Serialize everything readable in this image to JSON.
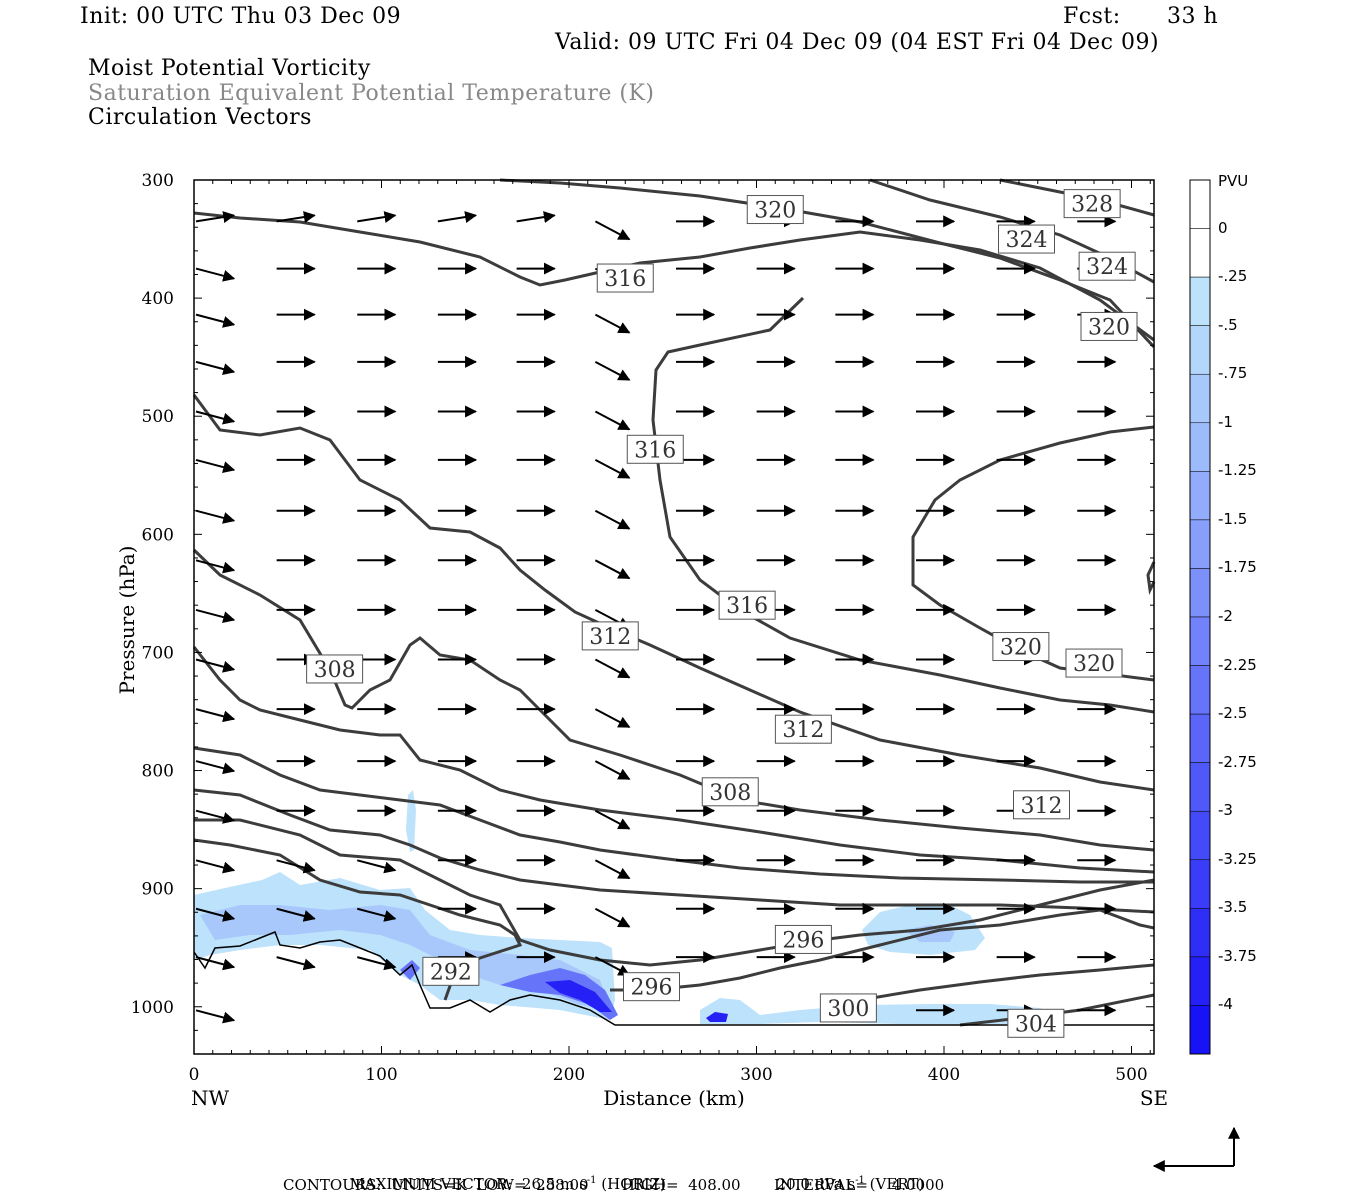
{
  "header": {
    "init": "Init: 00 UTC Thu 03 Dec 09",
    "fcst_label": "Fcst:",
    "fcst_value": "33 h",
    "valid": "Valid: 09 UTC Fri 04 Dec 09 (04 EST Fri 04 Dec 09)"
  },
  "fields": {
    "line1": "Moist Potential Vorticity",
    "line2": "Saturation Equivalent Potential Temperature (K)",
    "line3": "Circulation Vectors"
  },
  "footer": {
    "max_vector": "MAXIMUM VECTOR:  26.5 m s",
    "max_vector_exp": "-1",
    "horiz": " (HORIZ)",
    "vert_val": "20.0 dPa s",
    "vert_exp": "-1",
    "vert": " (VERT)",
    "contours": "CONTOURS:  UNITS=K  LOW=  288.00       HIGH=  408.00       INTERVAL=     4.0000"
  },
  "chart_data": {
    "type": "cross-section",
    "xlabel": "Distance (km)",
    "ylabel": "Pressure (hPa)",
    "x_left_label": "NW",
    "x_right_label": "SE",
    "xlim": [
      0,
      512
    ],
    "ylim": [
      300,
      1040
    ],
    "x_ticks": [
      0,
      100,
      200,
      300,
      400,
      500
    ],
    "y_ticks": [
      300,
      400,
      500,
      600,
      700,
      800,
      900,
      1000
    ],
    "colorbar": {
      "unit": "PVU",
      "ticks": [
        "0",
        "-.25",
        "-.5",
        "-.75",
        "-1",
        "-1.25",
        "-1.5",
        "-1.75",
        "-2",
        "-2.25",
        "-2.5",
        "-2.75",
        "-3",
        "-3.25",
        "-3.5",
        "-3.75",
        "-4"
      ],
      "colors": [
        "#ffffff",
        "#ffffff",
        "#bde2fb",
        "#b3d6fb",
        "#a8c8fb",
        "#9dbafb",
        "#92acfb",
        "#879efa",
        "#7c90fa",
        "#7182fa",
        "#6674f9",
        "#5b66f9",
        "#5058f8",
        "#454af8",
        "#3a3cf7",
        "#2f2ef7",
        "#2420f6",
        "#1812f6"
      ]
    },
    "contour_labels": [
      {
        "text": "320",
        "x": 310,
        "p": 325
      },
      {
        "text": "328",
        "x": 479,
        "p": 320
      },
      {
        "text": "324",
        "x": 444,
        "p": 350
      },
      {
        "text": "324",
        "x": 487,
        "p": 373
      },
      {
        "text": "316",
        "x": 230,
        "p": 383
      },
      {
        "text": "320",
        "x": 488,
        "p": 424
      },
      {
        "text": "316",
        "x": 246,
        "p": 528
      },
      {
        "text": "316",
        "x": 295,
        "p": 660
      },
      {
        "text": "312",
        "x": 222,
        "p": 686
      },
      {
        "text": "320",
        "x": 441,
        "p": 695
      },
      {
        "text": "320",
        "x": 480,
        "p": 709
      },
      {
        "text": "308",
        "x": 75,
        "p": 714
      },
      {
        "text": "312",
        "x": 325,
        "p": 765
      },
      {
        "text": "308",
        "x": 286,
        "p": 818
      },
      {
        "text": "312",
        "x": 452,
        "p": 829
      },
      {
        "text": "296",
        "x": 325,
        "p": 943
      },
      {
        "text": "292",
        "x": 137,
        "p": 970
      },
      {
        "text": "296",
        "x": 244,
        "p": 983
      },
      {
        "text": "300",
        "x": 349,
        "p": 1001
      },
      {
        "text": "304",
        "x": 449,
        "p": 1014
      }
    ]
  }
}
